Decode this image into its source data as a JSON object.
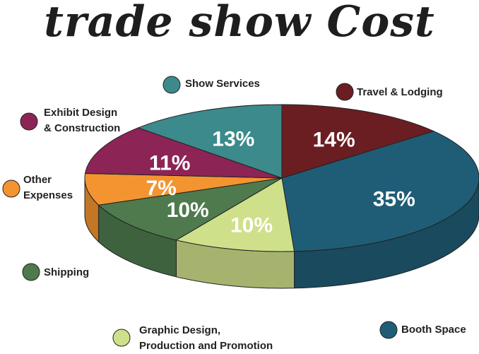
{
  "chart_data": {
    "type": "pie3d",
    "title": "trade show Cost",
    "categories": [
      "Travel & Lodging",
      "Booth Space",
      "Graphic Design,\nProduction and Promotion",
      "Shipping",
      "Other\nExpenses",
      "Exhibit Design\n& Construction",
      "Show Services"
    ],
    "values": [
      14,
      35,
      10,
      10,
      7,
      11,
      13
    ],
    "value_labels": [
      "14%",
      "35%",
      "10%",
      "10%",
      "7%",
      "11%",
      "13%"
    ],
    "colors": [
      "#6b1e22",
      "#1f5d76",
      "#cfe08a",
      "#4e7a4d",
      "#f39430",
      "#8c2456",
      "#3c8a8b"
    ]
  }
}
